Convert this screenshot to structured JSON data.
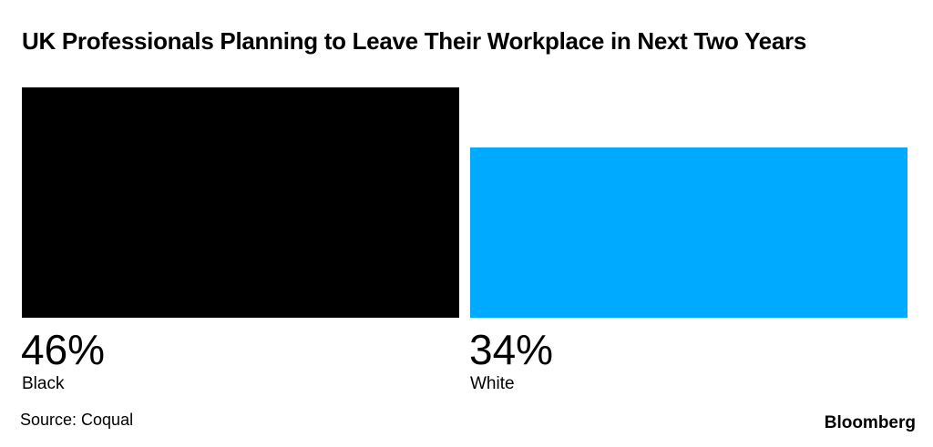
{
  "title": "UK Professionals Planning to Leave Their Workplace in Next Two Years",
  "source": "Source: Coqual",
  "brand": "Bloomberg",
  "colors": {
    "black": "#000000",
    "white": "#00aaff"
  },
  "chart_data": {
    "type": "bar",
    "title": "UK Professionals Planning to Leave Their Workplace in Next Two Years",
    "categories": [
      "Black",
      "White"
    ],
    "values": [
      46,
      34
    ],
    "value_labels": [
      "46%",
      "34%"
    ],
    "unit": "%",
    "bar_colors": [
      "#000000",
      "#00aaff"
    ],
    "grid": false,
    "legend": "none"
  }
}
